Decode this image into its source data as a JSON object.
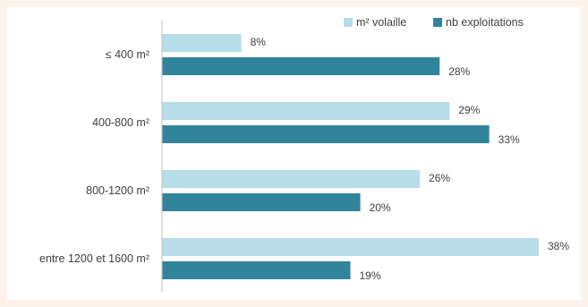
{
  "chart_data": {
    "type": "bar",
    "orientation": "horizontal",
    "categories": [
      "≤ 400 m²",
      "400-800 m²",
      "800-1200 m²",
      "entre 1200 et 1600 m²"
    ],
    "series": [
      {
        "name": "m² volaille",
        "values": [
          8,
          29,
          26,
          38
        ],
        "labels": [
          "8%",
          "29%",
          "26%",
          "38%"
        ],
        "color": "#b7dde8"
      },
      {
        "name": "nb exploitations",
        "values": [
          28,
          33,
          20,
          19
        ],
        "labels": [
          "28%",
          "33%",
          "20%",
          "19%"
        ],
        "color": "#31849b"
      }
    ],
    "xlim": [
      0,
      40
    ],
    "legend": "top-right",
    "grid": false
  },
  "colors": {
    "page_background": "#fdf2ec",
    "panel_background": "#ffffff",
    "axis": "#bfbfbf",
    "text": "#404040"
  }
}
